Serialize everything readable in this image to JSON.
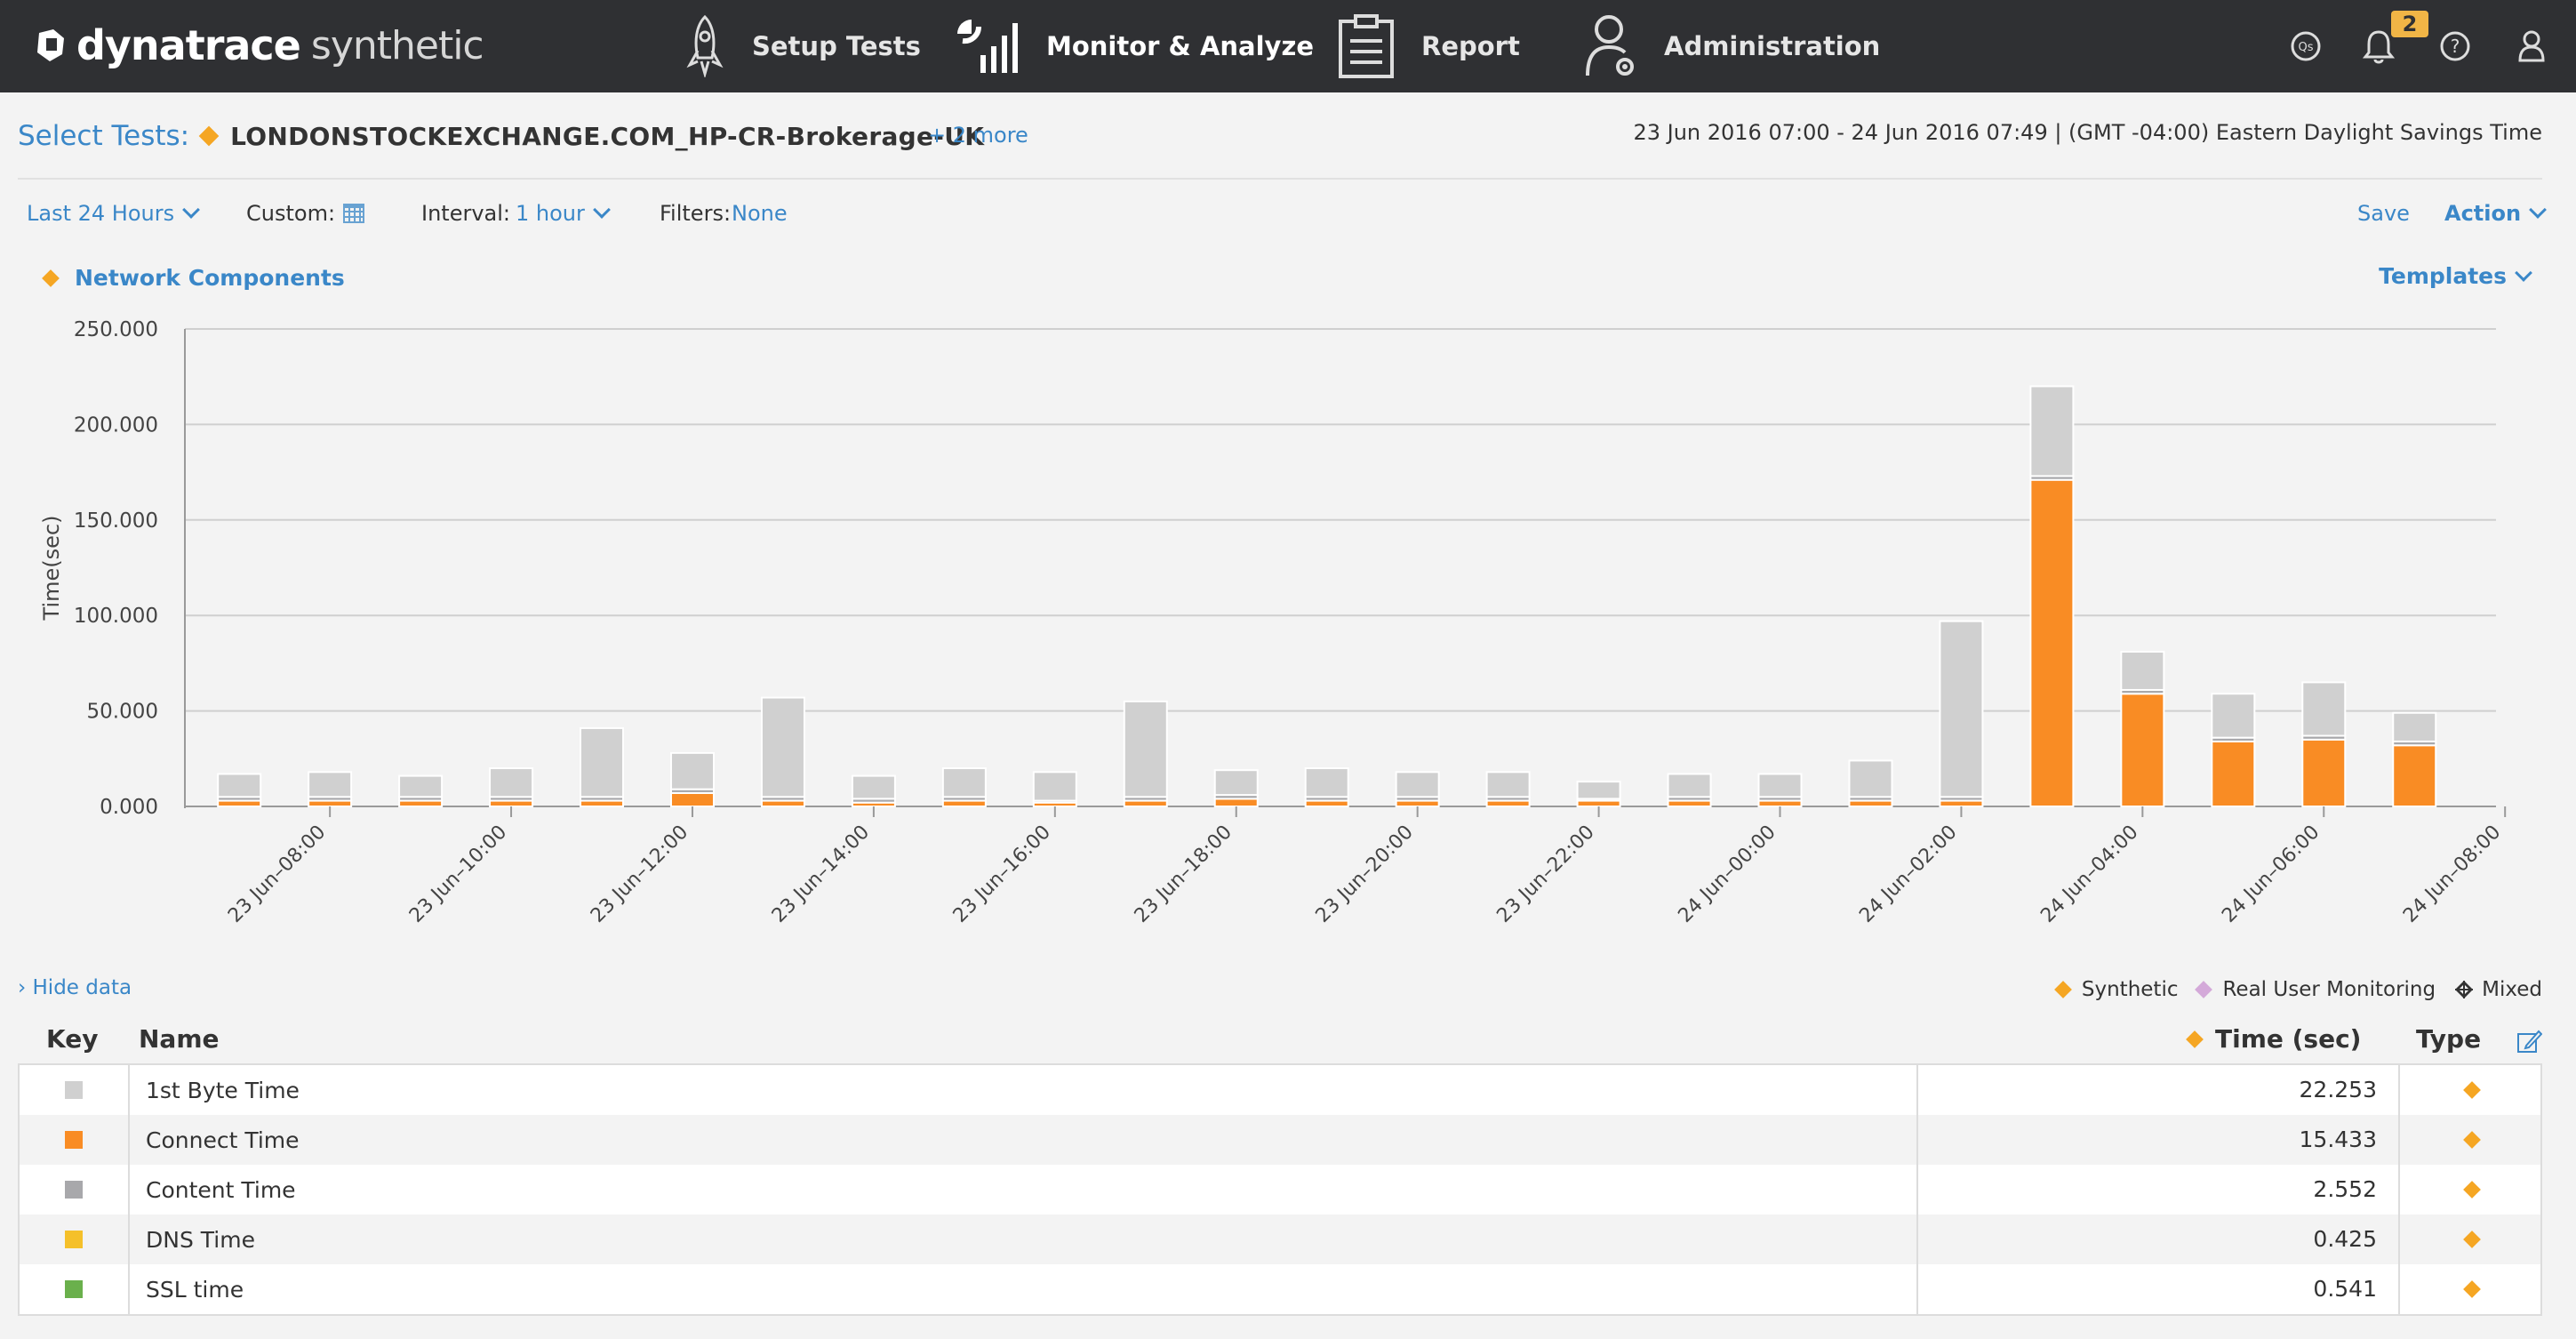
{
  "app": {
    "brand": "dynatrace",
    "product": "synthetic"
  },
  "nav": {
    "items": [
      {
        "label": "Setup Tests",
        "icon": "rocket-icon"
      },
      {
        "label": "Monitor & Analyze",
        "icon": "bar-chart-icon"
      },
      {
        "label": "Report",
        "icon": "clipboard-icon"
      },
      {
        "label": "Administration",
        "icon": "user-gear-icon"
      }
    ],
    "active": "Monitor & Analyze",
    "notification_count": "2",
    "right_icons": [
      "qs-icon",
      "bell-icon",
      "help-icon",
      "user-icon"
    ],
    "qs_label": "Qs",
    "help_label": "?"
  },
  "tests": {
    "select_label": "Select Tests:",
    "name": "LONDONSTOCKEXCHANGE.COM_HP-CR-Brokerage-UK",
    "more": "+ 2 more",
    "daterange": "23 Jun 2016 07:00 - 24 Jun 2016 07:49  | (GMT -04:00) Eastern Daylight Savings Time"
  },
  "filters": {
    "range": "Last 24 Hours",
    "custom_label": "Custom:",
    "interval_label": "Interval:",
    "interval_value": "1 hour",
    "filters_label": "Filters:",
    "filters_value": "None",
    "save": "Save",
    "action": "Action"
  },
  "chart_header": {
    "title": "Network Components",
    "templates": "Templates"
  },
  "colors": {
    "accent": "#3a87c8",
    "synthetic": "#f5a623",
    "first_byte": "#d0d0d0",
    "connect": "#f98c24",
    "content": "#a8a8ab",
    "dns": "#f5c02a",
    "ssl": "#6ab04c"
  },
  "chart_data": {
    "type": "bar",
    "stacked": true,
    "ylabel": "Time(sec)",
    "ylim": [
      0,
      250
    ],
    "yticks": [
      "0.000",
      "50.000",
      "100.000",
      "150.000",
      "200.000",
      "250.000"
    ],
    "xticks": [
      "23 Jun–08:00",
      "23 Jun–10:00",
      "23 Jun–12:00",
      "23 Jun–14:00",
      "23 Jun–16:00",
      "23 Jun–18:00",
      "23 Jun–20:00",
      "23 Jun–22:00",
      "24 Jun–00:00",
      "24 Jun–02:00",
      "24 Jun–04:00",
      "24 Jun–06:00",
      "24 Jun–08:00"
    ],
    "categories": [
      "07:00",
      "08:00",
      "09:00",
      "10:00",
      "11:00",
      "12:00",
      "13:00",
      "14:00",
      "15:00",
      "16:00",
      "17:00",
      "18:00",
      "19:00",
      "20:00",
      "21:00",
      "22:00",
      "23:00",
      "00:00",
      "01:00",
      "02:00",
      "03:00",
      "04:00",
      "05:00",
      "06:00",
      "07:00"
    ],
    "series": [
      {
        "name": "Connect Time",
        "color": "#f98c24",
        "values": [
          3,
          3,
          3,
          3,
          3,
          7,
          3,
          2,
          3,
          2,
          3,
          4,
          3,
          3,
          3,
          3,
          3,
          3,
          3,
          3,
          171,
          59,
          34,
          35,
          32
        ]
      },
      {
        "name": "Content Time",
        "color": "#a8a8ab",
        "values": [
          2,
          2,
          2,
          2,
          2,
          2,
          2,
          2,
          2,
          1,
          2,
          2,
          2,
          2,
          2,
          1,
          2,
          2,
          2,
          2,
          2,
          2,
          2,
          2,
          2
        ]
      },
      {
        "name": "1st Byte Time",
        "color": "#d0d0d0",
        "values": [
          12,
          13,
          11,
          15,
          36,
          19,
          52,
          12,
          15,
          15,
          50,
          13,
          15,
          13,
          13,
          9,
          12,
          12,
          19,
          92,
          47,
          20,
          23,
          28,
          15
        ]
      }
    ]
  },
  "data_toggle": "› Hide data",
  "legend": {
    "synthetic": "Synthetic",
    "rum": "Real User Monitoring",
    "mixed": "Mixed"
  },
  "table": {
    "headers": {
      "key": "Key",
      "name": "Name",
      "time": "Time (sec)",
      "type": "Type"
    },
    "rows": [
      {
        "name": "1st Byte Time",
        "time": "22.253",
        "color": "#d0d0d0"
      },
      {
        "name": "Connect Time",
        "time": "15.433",
        "color": "#f98c24"
      },
      {
        "name": "Content Time",
        "time": "2.552",
        "color": "#a8a8ab"
      },
      {
        "name": "DNS Time",
        "time": "0.425",
        "color": "#f5c02a"
      },
      {
        "name": "SSL time",
        "time": "0.541",
        "color": "#6ab04c"
      }
    ]
  }
}
